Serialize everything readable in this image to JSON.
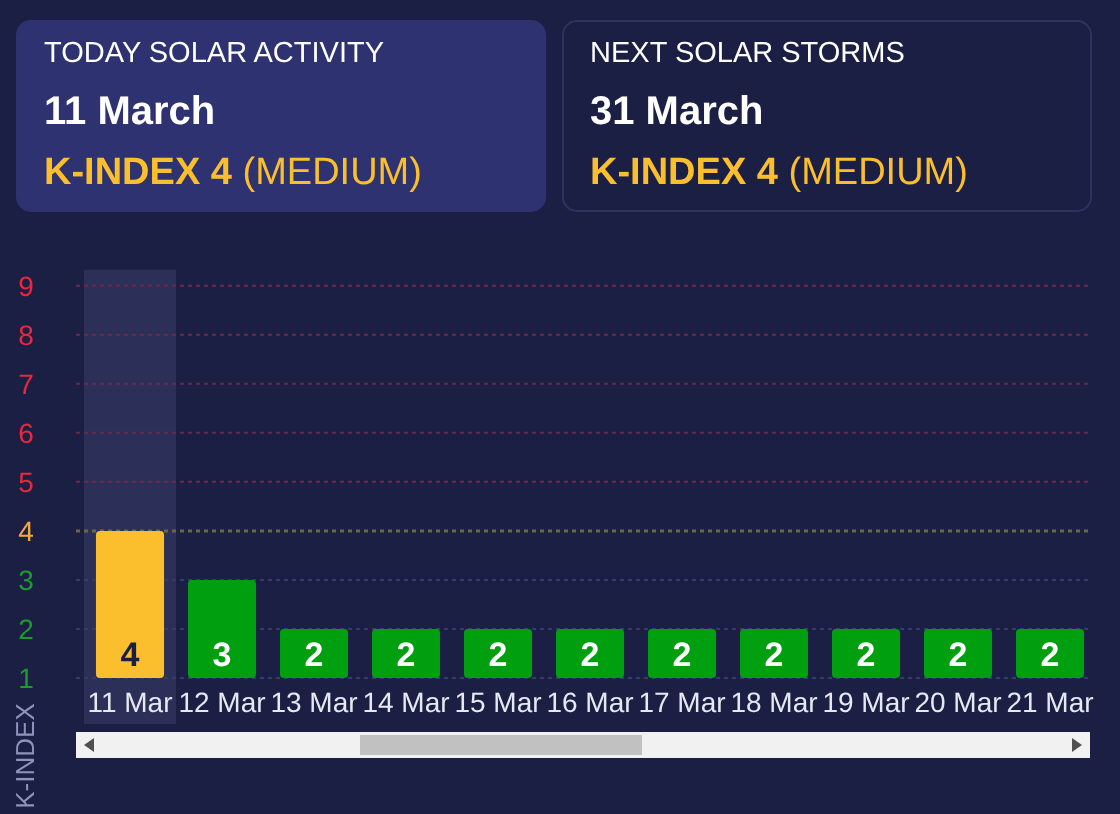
{
  "chart_data": [
    {
      "type": "other",
      "title": "TODAY SOLAR ACTIVITY",
      "subtitle": "11 March",
      "annotations": [
        "K-INDEX 4 (MEDIUM)"
      ]
    },
    {
      "type": "other",
      "title": "NEXT SOLAR STORMS",
      "subtitle": "31 March",
      "annotations": [
        "K-INDEX 4 (MEDIUM)"
      ]
    },
    {
      "type": "bar",
      "ylabel": "K-INDEX",
      "categories": [
        "11 Mar",
        "12 Mar",
        "13 Mar",
        "14 Mar",
        "15 Mar",
        "16 Mar",
        "17 Mar",
        "18 Mar",
        "19 Mar",
        "20 Mar",
        "21 Mar"
      ],
      "values": [
        4,
        3,
        2,
        2,
        2,
        2,
        2,
        2,
        2,
        2,
        2
      ],
      "colors": [
        "#fbbf2d",
        "#009f10",
        "#009f10",
        "#009f10",
        "#009f10",
        "#009f10",
        "#009f10",
        "#009f10",
        "#009f10",
        "#009f10",
        "#009f10"
      ],
      "ylim": [
        1,
        9
      ],
      "yticks": [
        1,
        2,
        3,
        4,
        5,
        6,
        7,
        8,
        9
      ],
      "grid": "y",
      "data_labels": true,
      "ref_lines": [
        {
          "axis": "y",
          "value": 4,
          "color": "#6e6448",
          "line_style": "dotted"
        }
      ],
      "bands": [
        {
          "axis": "x",
          "from": "11 Mar",
          "to": "11 Mar",
          "color": "#2c3059"
        }
      ]
    }
  ]
}
